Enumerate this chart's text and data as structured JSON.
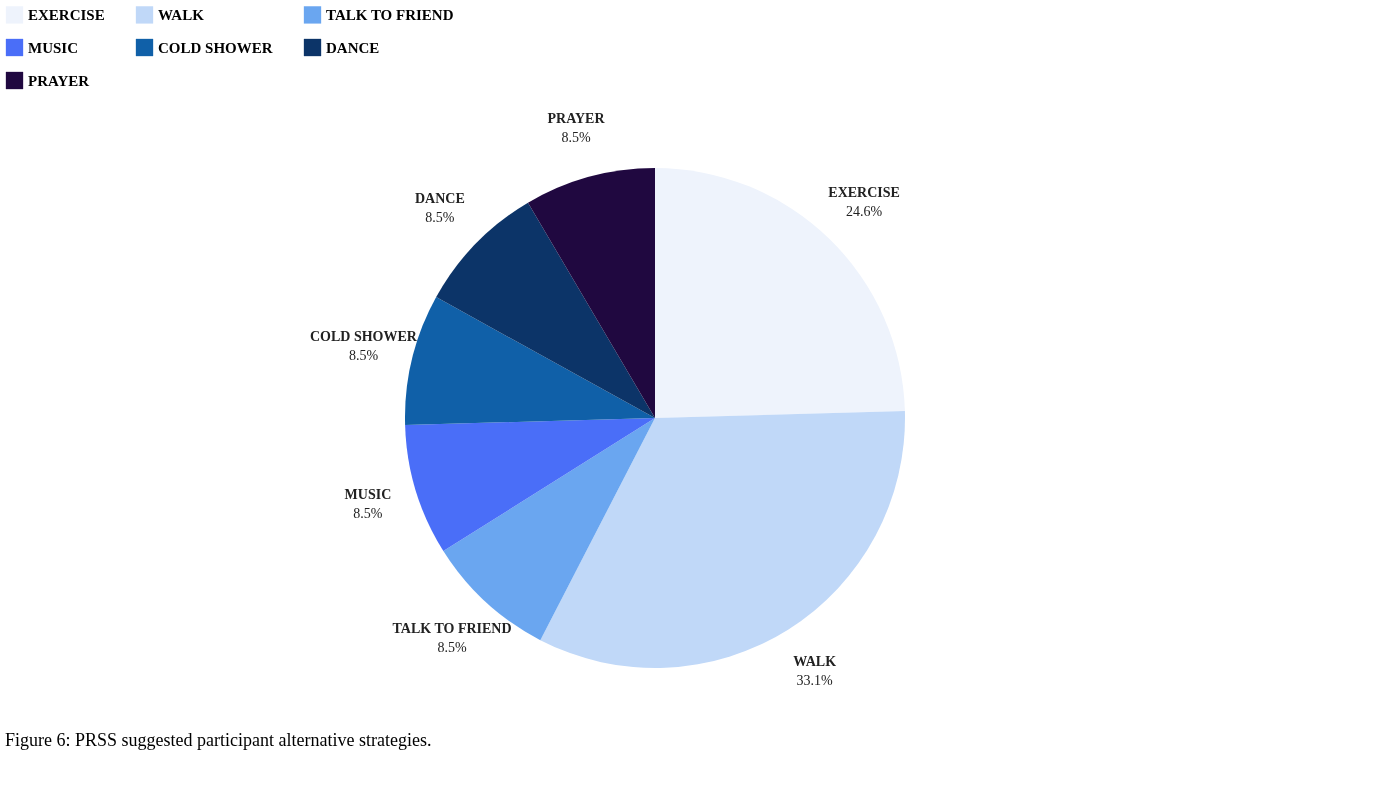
{
  "chart_data": {
    "type": "pie",
    "categories": [
      "EXERCISE",
      "WALK",
      "TALK TO FRIEND",
      "MUSIC",
      "COLD SHOWER",
      "DANCE",
      "PRAYER"
    ],
    "values": [
      24.6,
      33.1,
      8.5,
      8.5,
      8.5,
      8.5,
      8.5
    ],
    "value_labels": [
      "24.6%",
      "33.1%",
      "8.5%",
      "8.5%",
      "8.5%",
      "8.5%",
      "8.5%"
    ],
    "colors": [
      "#eef3fc",
      "#c0d8f8",
      "#6aa6f0",
      "#4a6ef8",
      "#1060a8",
      "#0c3468",
      "#200840"
    ],
    "legend": "top",
    "annotations": [
      "Figure 6:  PRSS suggested participant alternative strategies."
    ]
  }
}
